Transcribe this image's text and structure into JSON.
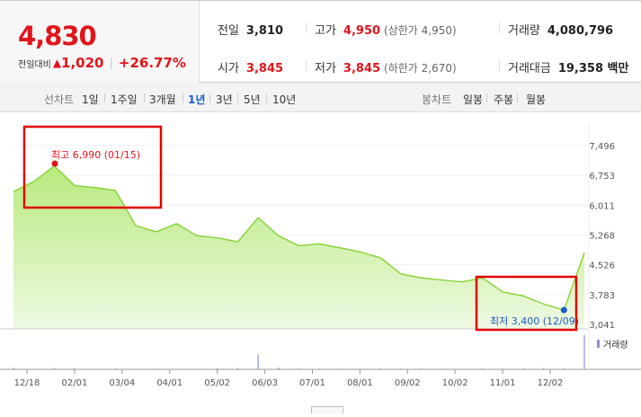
{
  "summary": {
    "price": "4,830",
    "change_label": "전일대비",
    "change_symbol": "▲",
    "change_value": "1,020",
    "change_pct": "+26.77%",
    "prev_close": {
      "label": "전일",
      "value": "3,810"
    },
    "high": {
      "label": "고가",
      "value": "4,950",
      "sub": "(상한가 4,950)"
    },
    "volume": {
      "label": "거래량",
      "value": "4,080,796"
    },
    "open": {
      "label": "시가",
      "value": "3,845"
    },
    "low": {
      "label": "저가",
      "value": "3,845",
      "sub": "(하한가 2,670)"
    },
    "amount": {
      "label": "거래대금",
      "value": "19,358 백만"
    }
  },
  "toolbar": {
    "line_label": "선차트",
    "periods": [
      "1일",
      "1주일",
      "3개월",
      "1년",
      "3년",
      "5년",
      "10년"
    ],
    "active_period": "1년",
    "candle_label": "봉차트",
    "candles": [
      "일봉",
      "주봉",
      "월봉"
    ]
  },
  "colors": {
    "up": "#e0151b",
    "line": "#7fd12a",
    "area_top": "#b8ea7e",
    "area_bottom": "#eef9e2",
    "low_dot": "#1a5bcc",
    "highlight": "#e00000"
  },
  "chart_data": {
    "type": "area",
    "x": [
      "12/18",
      "12/30",
      "01/15",
      "02/01",
      "02/10",
      "02/20",
      "03/04",
      "03/20",
      "04/01",
      "04/20",
      "05/02",
      "05/20",
      "05/27",
      "06/03",
      "06/20",
      "07/01",
      "07/20",
      "08/01",
      "08/20",
      "09/02",
      "09/20",
      "10/02",
      "10/15",
      "11/01",
      "11/10",
      "11/20",
      "12/02",
      "12/09",
      "12/16"
    ],
    "y": [
      6350,
      6600,
      6990,
      6500,
      6450,
      6380,
      5500,
      5350,
      5550,
      5250,
      5200,
      5100,
      5700,
      5250,
      5000,
      5050,
      4950,
      4850,
      4700,
      4300,
      4200,
      4150,
      4100,
      4200,
      3850,
      3750,
      3550,
      3400,
      4830
    ],
    "yticks": [
      "7,496",
      "6,753",
      "6,011",
      "5,268",
      "4,526",
      "3,783",
      "3,041"
    ],
    "ylim": [
      3041,
      7496
    ],
    "xticks": [
      "12/18",
      "02/01",
      "03/04",
      "04/01",
      "05/02",
      "06/03",
      "07/01",
      "08/01",
      "09/02",
      "10/02",
      "11/01",
      "12/02"
    ],
    "high_annotation": "최고 6,990 (01/15)",
    "low_annotation": "최저 3,400 (12/09)",
    "volume_label": "거래량",
    "volume": [
      5,
      2,
      4,
      3,
      2,
      3,
      2,
      2,
      2,
      2,
      3,
      4,
      40,
      5,
      3,
      2,
      2,
      2,
      3,
      2,
      3,
      2,
      2,
      3,
      2,
      3,
      4,
      3,
      90
    ]
  }
}
